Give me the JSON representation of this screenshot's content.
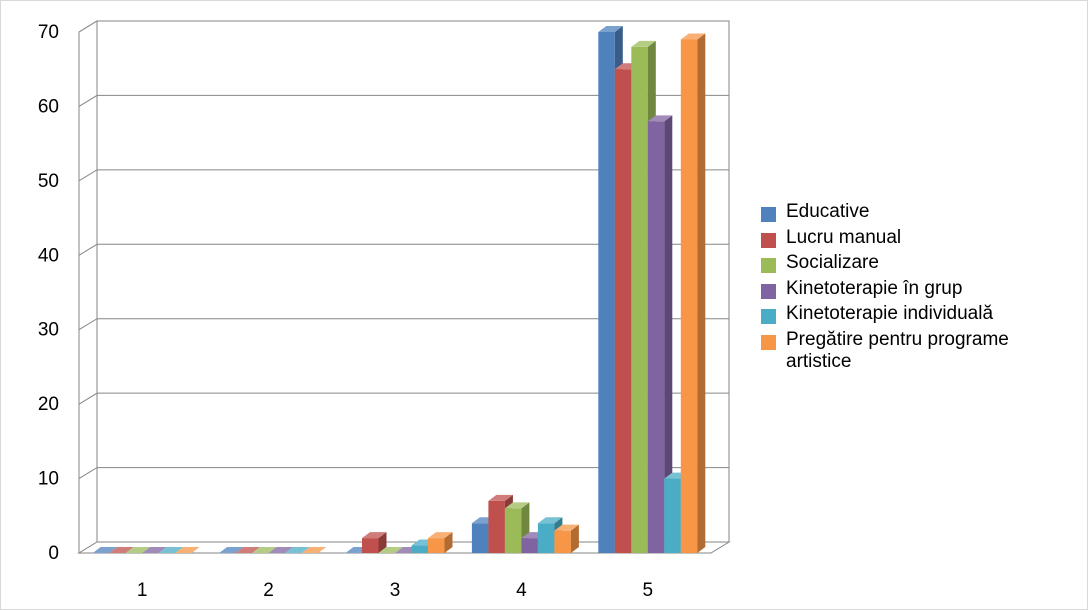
{
  "chart_data": {
    "type": "bar",
    "style": "3d-clustered-column",
    "categories": [
      "1",
      "2",
      "3",
      "4",
      "5"
    ],
    "series": [
      {
        "name": "Educative",
        "color": "#4F81BD",
        "values": [
          0,
          0,
          0,
          4,
          70
        ]
      },
      {
        "name": "Lucru manual",
        "color": "#C0504D",
        "values": [
          0,
          0,
          2,
          7,
          65
        ]
      },
      {
        "name": "Socializare",
        "color": "#9BBB59",
        "values": [
          0,
          0,
          0,
          6,
          68
        ]
      },
      {
        "name": "Kinetoterapie în grup",
        "color": "#8064A2",
        "values": [
          0,
          0,
          0,
          2,
          58
        ]
      },
      {
        "name": "Kinetoterapie individuală",
        "color": "#4BACC6",
        "values": [
          0,
          0,
          1,
          4,
          10
        ]
      },
      {
        "name": "Pregătire pentru programe artistice",
        "color": "#F79646",
        "values": [
          0,
          0,
          2,
          3,
          69
        ]
      }
    ],
    "ylim": [
      0,
      70
    ],
    "yticks": [
      "0",
      "10",
      "20",
      "30",
      "40",
      "50",
      "60",
      "70"
    ],
    "grid": true,
    "legend_position": "right"
  }
}
